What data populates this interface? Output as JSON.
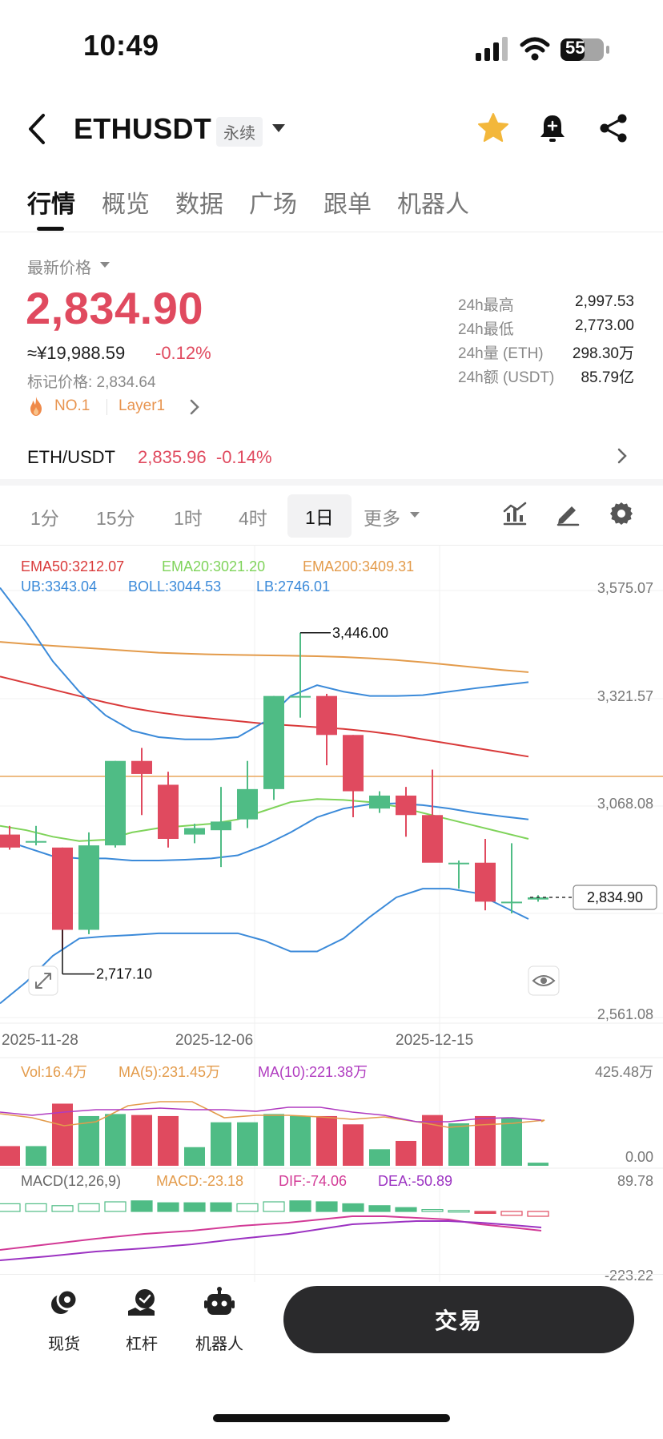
{
  "status_bar": {
    "time": "10:49",
    "battery": "55"
  },
  "header": {
    "symbol": "ETHUSDT",
    "contract_type": "永续"
  },
  "tabs": [
    "行情",
    "概览",
    "数据",
    "广场",
    "跟单",
    "机器人"
  ],
  "price_info": {
    "last_price_label": "最新价格",
    "last_price": "2,834.90",
    "cny_price": "≈¥19,988.59",
    "change_pct": "-0.12%",
    "mark_price": "标记价格: 2,834.64",
    "rank_badge": "NO.1",
    "tag": "Layer1",
    "colors": {
      "up": "#4fbc85",
      "down": "#e04a5f",
      "badge": "#e8944f"
    }
  },
  "stats_24h": [
    {
      "label": "24h最高",
      "value": "2,997.53"
    },
    {
      "label": "24h最低",
      "value": "2,773.00"
    },
    {
      "label": "24h量 (ETH)",
      "value": "298.30万"
    },
    {
      "label": "24h额 (USDT)",
      "value": "85.79亿"
    }
  ],
  "spot": {
    "pair": "ETH/USDT",
    "price_change": "2,835.96  -0.14%"
  },
  "intervals": {
    "items": [
      "1分",
      "15分",
      "1时",
      "4时",
      "1日",
      "更多"
    ],
    "selected": "1日"
  },
  "chart_data": {
    "type": "candlestick",
    "indicators": {
      "ema50": "EMA50:3212.07",
      "ema20": "EMA20:3021.20",
      "ema200": "EMA200:3409.31",
      "ub": "UB:3343.04",
      "boll": "BOLL:3044.53",
      "lb": "LB:2746.01"
    },
    "y_ticks": [
      "3,575.07",
      "3,321.57",
      "3,068.08",
      "2,834.90",
      "2,561.08"
    ],
    "ylim": [
      2561.08,
      3575.07
    ],
    "x_ticks": [
      "2025-11-28",
      "2025-12-06",
      "2025-12-15"
    ],
    "high_label": "3,446.00",
    "low_label": "2,717.10",
    "current_price": 2834.9,
    "ohlc": [
      [
        2980,
        3000,
        2945,
        2950
      ],
      [
        2965,
        3000,
        2955,
        2965
      ],
      [
        2950,
        2950,
        2717,
        2760
      ],
      [
        2760,
        2985,
        2750,
        2955
      ],
      [
        2955,
        3150,
        2950,
        3150
      ],
      [
        3150,
        3180,
        3025,
        3120
      ],
      [
        3095,
        3125,
        2950,
        2970
      ],
      [
        2980,
        3005,
        2960,
        2995
      ],
      [
        2990,
        3090,
        2905,
        3010
      ],
      [
        3015,
        3150,
        2995,
        3085
      ],
      [
        3085,
        3300,
        3060,
        3300
      ],
      [
        3300,
        3446,
        3250,
        3300
      ],
      [
        3300,
        3305,
        3140,
        3210
      ],
      [
        3210,
        3210,
        3020,
        3080
      ],
      [
        3040,
        3080,
        3030,
        3070
      ],
      [
        3070,
        3090,
        2975,
        3025
      ],
      [
        3025,
        3130,
        2920,
        2915
      ],
      [
        2915,
        2920,
        2855,
        2915
      ],
      [
        2915,
        2970,
        2805,
        2825
      ],
      [
        2825,
        2960,
        2798,
        2825
      ],
      [
        2830,
        2840,
        2825,
        2834.9
      ]
    ],
    "ema200_line": [
      3390,
      3370,
      3345,
      3320
    ],
    "volume": {
      "label": "Vol:16.4万",
      "ma5": "MA(5):231.45万",
      "ma10": "MA(10):221.38万",
      "y_ticks": [
        "425.48万",
        "0.00"
      ],
      "bars": [
        95,
        95,
        300,
        240,
        250,
        245,
        240,
        90,
        210,
        210,
        250,
        240,
        240,
        200,
        80,
        120,
        245,
        205,
        240,
        230,
        15
      ]
    },
    "macd": {
      "label": "MACD(12,26,9)",
      "value": "MACD:-23.18",
      "dif": "DIF:-74.06",
      "dea": "DEA:-50.89",
      "y_tick": "89.78",
      "y_tick_bottom": "-223.22"
    },
    "colors": {
      "ema50": "#d93a3a",
      "ema20": "#7fd35a",
      "ema200": "#e39b4b",
      "boll": "#3b8ad9",
      "vol": "#e39b4b",
      "ma5": "#e39b4b",
      "ma10": "#b03cc0",
      "dif": "#d23a96",
      "dea": "#9c33c2"
    }
  },
  "bottom_nav": [
    {
      "label": "现货",
      "icon": "spot-icon"
    },
    {
      "label": "杠杆",
      "icon": "margin-icon"
    },
    {
      "label": "机器人",
      "icon": "robot-icon"
    }
  ],
  "trade_button": "交易"
}
